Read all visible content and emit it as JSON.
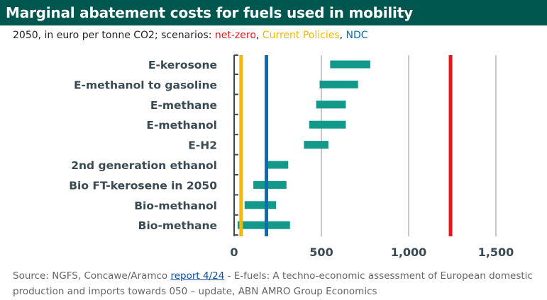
{
  "title": "Marginal abatement costs for fuels used in mobility",
  "subtitle": {
    "prefix": "2050, in euro per tonne CO2; scenarios: ",
    "net_zero": "net-zero",
    "sep1": ", ",
    "current_policies": "Current Policies",
    "sep2": ", ",
    "ndc": "NDC"
  },
  "colors": {
    "header_bg": "#00574f",
    "bar": "#13998a",
    "net_zero": "#e8141a",
    "current_policies": "#f5b800",
    "ndc": "#0a6db5",
    "grid": "#c8c8c8",
    "axis_text": "#3a4a55"
  },
  "chart_data": {
    "type": "bar",
    "orientation": "horizontal-range",
    "categories": [
      "E-kerosone",
      "E-methanol to gasoline",
      "E-methane",
      "E-methanol",
      "E-H2",
      "2nd generation ethanol",
      "Bio FT-kerosene in 2050",
      "Bio-methanol",
      "Bio-methane"
    ],
    "series": [
      {
        "name": "Abatement cost range",
        "ranges": [
          [
            550,
            780
          ],
          [
            490,
            710
          ],
          [
            470,
            640
          ],
          [
            430,
            640
          ],
          [
            400,
            540
          ],
          [
            180,
            310
          ],
          [
            110,
            300
          ],
          [
            60,
            240
          ],
          [
            20,
            320
          ]
        ]
      }
    ],
    "reference_lines": [
      {
        "name": "net-zero",
        "value": 1240
      },
      {
        "name": "Current Policies",
        "value": 40
      },
      {
        "name": "NDC",
        "value": 185
      }
    ],
    "xticks": [
      0,
      500,
      1000,
      1500
    ],
    "xtick_labels": [
      "0",
      "500",
      "1,000",
      "1,500"
    ],
    "xlim": [
      0,
      1650
    ],
    "grid": true,
    "title": "Marginal abatement costs for fuels used in mobility",
    "xlabel": "",
    "ylabel": ""
  },
  "source": {
    "prefix": "Source: NGFS, Concawe/Aramco ",
    "link_text": "report 4/24",
    "suffix": " - E-fuels: A techno-economic assessment of European domestic production and imports towards 050 – update, ABN AMRO Group Economics"
  }
}
